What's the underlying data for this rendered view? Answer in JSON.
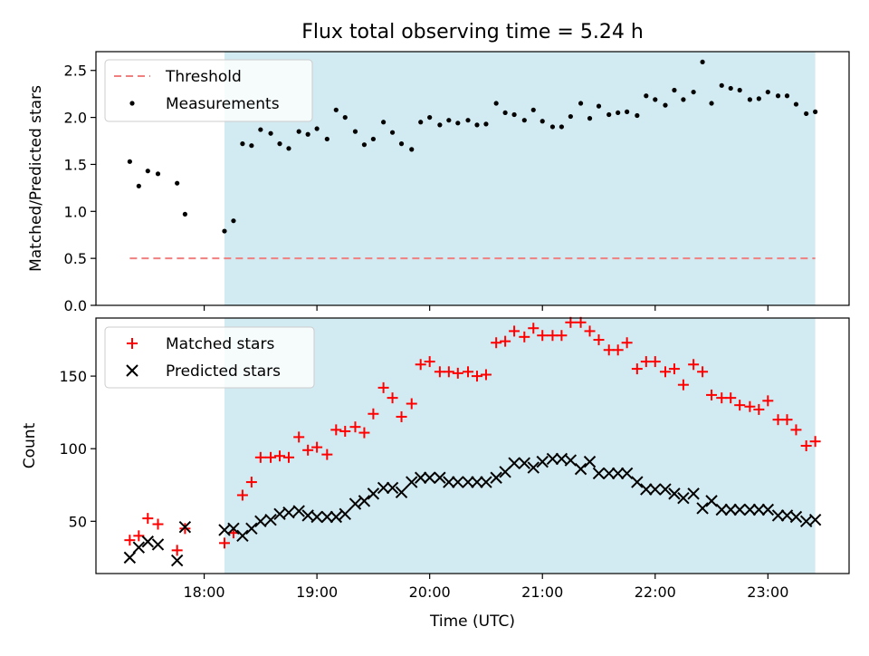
{
  "chart_data": {
    "type": "scatter",
    "title": "Flux total observing time = 5.24 h",
    "xlabel": "Time (UTC)",
    "x_ticks": [
      {
        "h": 18,
        "label": "18:00"
      },
      {
        "h": 19,
        "label": "19:00"
      },
      {
        "h": 20,
        "label": "20:00"
      },
      {
        "h": 21,
        "label": "21:00"
      },
      {
        "h": 22,
        "label": "22:00"
      },
      {
        "h": 23,
        "label": "23:00"
      }
    ],
    "xlim": [
      17.04,
      23.72
    ],
    "shaded_region": {
      "start": 18.18,
      "end": 23.42,
      "color": "#add8e6"
    },
    "top_panel": {
      "ylabel": "Matched/Predicted stars",
      "ylim": [
        0,
        2.7
      ],
      "yticks": [
        {
          "v": 0,
          "label": "0.0"
        },
        {
          "v": 0.5,
          "label": "0.5"
        },
        {
          "v": 1.0,
          "label": "1.0"
        },
        {
          "v": 1.5,
          "label": "1.5"
        },
        {
          "v": 2.0,
          "label": "2.0"
        },
        {
          "v": 2.5,
          "label": "2.5"
        }
      ],
      "threshold": {
        "name": "Threshold",
        "value": 0.5,
        "x_start": 17.34,
        "x_end": 23.42,
        "color": "#f08080"
      },
      "measurements": {
        "name": "Measurements",
        "color": "#000000",
        "points": [
          [
            17.34,
            1.53
          ],
          [
            17.42,
            1.27
          ],
          [
            17.5,
            1.43
          ],
          [
            17.59,
            1.4
          ],
          [
            17.76,
            1.3
          ],
          [
            17.83,
            0.97
          ],
          [
            18.18,
            0.79
          ],
          [
            18.26,
            0.9
          ],
          [
            18.34,
            1.72
          ],
          [
            18.42,
            1.7
          ],
          [
            18.5,
            1.87
          ],
          [
            18.59,
            1.83
          ],
          [
            18.67,
            1.72
          ],
          [
            18.75,
            1.67
          ],
          [
            18.84,
            1.85
          ],
          [
            18.92,
            1.82
          ],
          [
            19.0,
            1.88
          ],
          [
            19.09,
            1.77
          ],
          [
            19.17,
            2.08
          ],
          [
            19.25,
            2.0
          ],
          [
            19.34,
            1.85
          ],
          [
            19.42,
            1.71
          ],
          [
            19.5,
            1.77
          ],
          [
            19.59,
            1.95
          ],
          [
            19.67,
            1.84
          ],
          [
            19.75,
            1.72
          ],
          [
            19.84,
            1.66
          ],
          [
            19.92,
            1.95
          ],
          [
            20.0,
            2.0
          ],
          [
            20.09,
            1.92
          ],
          [
            20.17,
            1.97
          ],
          [
            20.25,
            1.94
          ],
          [
            20.34,
            1.97
          ],
          [
            20.42,
            1.92
          ],
          [
            20.5,
            1.93
          ],
          [
            20.59,
            2.15
          ],
          [
            20.67,
            2.05
          ],
          [
            20.75,
            2.03
          ],
          [
            20.84,
            1.97
          ],
          [
            20.92,
            2.08
          ],
          [
            21.0,
            1.96
          ],
          [
            21.09,
            1.9
          ],
          [
            21.17,
            1.9
          ],
          [
            21.25,
            2.01
          ],
          [
            21.34,
            2.15
          ],
          [
            21.42,
            1.99
          ],
          [
            21.5,
            2.12
          ],
          [
            21.59,
            2.03
          ],
          [
            21.67,
            2.05
          ],
          [
            21.75,
            2.06
          ],
          [
            21.84,
            2.02
          ],
          [
            21.92,
            2.23
          ],
          [
            22.0,
            2.19
          ],
          [
            22.09,
            2.13
          ],
          [
            22.17,
            2.29
          ],
          [
            22.25,
            2.19
          ],
          [
            22.34,
            2.27
          ],
          [
            22.42,
            2.59
          ],
          [
            22.5,
            2.15
          ],
          [
            22.59,
            2.34
          ],
          [
            22.67,
            2.31
          ],
          [
            22.75,
            2.29
          ],
          [
            22.84,
            2.19
          ],
          [
            22.92,
            2.2
          ],
          [
            23.0,
            2.27
          ],
          [
            23.09,
            2.23
          ],
          [
            23.17,
            2.23
          ],
          [
            23.25,
            2.14
          ],
          [
            23.34,
            2.04
          ],
          [
            23.42,
            2.06
          ]
        ]
      }
    },
    "bottom_panel": {
      "ylabel": "Count",
      "ylim": [
        14,
        190
      ],
      "yticks": [
        {
          "v": 50,
          "label": "50"
        },
        {
          "v": 100,
          "label": "100"
        },
        {
          "v": 150,
          "label": "150"
        }
      ],
      "series": [
        {
          "name": "Matched stars",
          "marker": "+",
          "color": "#ff0000",
          "points": [
            [
              17.34,
              37
            ],
            [
              17.42,
              40
            ],
            [
              17.5,
              52
            ],
            [
              17.59,
              48
            ],
            [
              17.76,
              30
            ],
            [
              17.83,
              45
            ],
            [
              18.18,
              35
            ],
            [
              18.26,
              42
            ],
            [
              18.34,
              68
            ],
            [
              18.42,
              77
            ],
            [
              18.5,
              94
            ],
            [
              18.59,
              94
            ],
            [
              18.67,
              95
            ],
            [
              18.75,
              94
            ],
            [
              18.84,
              108
            ],
            [
              18.92,
              99
            ],
            [
              19.0,
              101
            ],
            [
              19.09,
              96
            ],
            [
              19.17,
              113
            ],
            [
              19.25,
              112
            ],
            [
              19.34,
              115
            ],
            [
              19.42,
              111
            ],
            [
              19.5,
              124
            ],
            [
              19.59,
              142
            ],
            [
              19.67,
              135
            ],
            [
              19.75,
              122
            ],
            [
              19.84,
              131
            ],
            [
              19.92,
              158
            ],
            [
              20.0,
              160
            ],
            [
              20.09,
              153
            ],
            [
              20.17,
              153
            ],
            [
              20.25,
              152
            ],
            [
              20.34,
              153
            ],
            [
              20.42,
              150
            ],
            [
              20.5,
              151
            ],
            [
              20.59,
              173
            ],
            [
              20.67,
              174
            ],
            [
              20.75,
              181
            ],
            [
              20.84,
              177
            ],
            [
              20.92,
              183
            ],
            [
              21.0,
              178
            ],
            [
              21.09,
              178
            ],
            [
              21.17,
              178
            ],
            [
              21.25,
              187
            ],
            [
              21.34,
              187
            ],
            [
              21.42,
              181
            ],
            [
              21.5,
              175
            ],
            [
              21.59,
              168
            ],
            [
              21.67,
              168
            ],
            [
              21.75,
              173
            ],
            [
              21.84,
              155
            ],
            [
              21.92,
              160
            ],
            [
              22.0,
              160
            ],
            [
              22.09,
              153
            ],
            [
              22.17,
              155
            ],
            [
              22.25,
              144
            ],
            [
              22.34,
              158
            ],
            [
              22.42,
              153
            ],
            [
              22.5,
              137
            ],
            [
              22.59,
              135
            ],
            [
              22.67,
              135
            ],
            [
              22.75,
              130
            ],
            [
              22.84,
              129
            ],
            [
              22.92,
              127
            ],
            [
              23.0,
              133
            ],
            [
              23.09,
              120
            ],
            [
              23.17,
              120
            ],
            [
              23.25,
              113
            ],
            [
              23.34,
              102
            ],
            [
              23.42,
              105
            ]
          ]
        },
        {
          "name": "Predicted stars",
          "marker": "x",
          "color": "#000000",
          "points": [
            [
              17.34,
              25
            ],
            [
              17.42,
              32
            ],
            [
              17.5,
              36
            ],
            [
              17.59,
              34
            ],
            [
              17.76,
              23
            ],
            [
              17.83,
              46
            ],
            [
              18.18,
              44
            ],
            [
              18.26,
              45
            ],
            [
              18.34,
              40
            ],
            [
              18.42,
              45
            ],
            [
              18.5,
              50
            ],
            [
              18.59,
              51
            ],
            [
              18.67,
              55
            ],
            [
              18.75,
              56
            ],
            [
              18.84,
              57
            ],
            [
              18.92,
              54
            ],
            [
              19.0,
              53
            ],
            [
              19.09,
              53
            ],
            [
              19.17,
              53
            ],
            [
              19.25,
              55
            ],
            [
              19.34,
              62
            ],
            [
              19.42,
              64
            ],
            [
              19.5,
              69
            ],
            [
              19.59,
              73
            ],
            [
              19.67,
              73
            ],
            [
              19.75,
              70
            ],
            [
              19.84,
              77
            ],
            [
              19.92,
              80
            ],
            [
              20.0,
              80
            ],
            [
              20.09,
              80
            ],
            [
              20.17,
              77
            ],
            [
              20.25,
              77
            ],
            [
              20.34,
              77
            ],
            [
              20.42,
              77
            ],
            [
              20.5,
              77
            ],
            [
              20.59,
              80
            ],
            [
              20.67,
              84
            ],
            [
              20.75,
              90
            ],
            [
              20.84,
              90
            ],
            [
              20.92,
              87
            ],
            [
              21.0,
              91
            ],
            [
              21.09,
              93
            ],
            [
              21.17,
              93
            ],
            [
              21.25,
              92
            ],
            [
              21.34,
              86
            ],
            [
              21.42,
              91
            ],
            [
              21.5,
              83
            ],
            [
              21.59,
              83
            ],
            [
              21.67,
              83
            ],
            [
              21.75,
              83
            ],
            [
              21.84,
              77
            ],
            [
              21.92,
              72
            ],
            [
              22.0,
              72
            ],
            [
              22.09,
              72
            ],
            [
              22.17,
              69
            ],
            [
              22.25,
              66
            ],
            [
              22.34,
              69
            ],
            [
              22.42,
              59
            ],
            [
              22.5,
              64
            ],
            [
              22.59,
              58
            ],
            [
              22.67,
              58
            ],
            [
              22.75,
              58
            ],
            [
              22.84,
              58
            ],
            [
              22.92,
              58
            ],
            [
              23.0,
              58
            ],
            [
              23.09,
              54
            ],
            [
              23.17,
              54
            ],
            [
              23.25,
              53
            ],
            [
              23.34,
              50
            ],
            [
              23.42,
              51
            ]
          ]
        }
      ]
    }
  }
}
